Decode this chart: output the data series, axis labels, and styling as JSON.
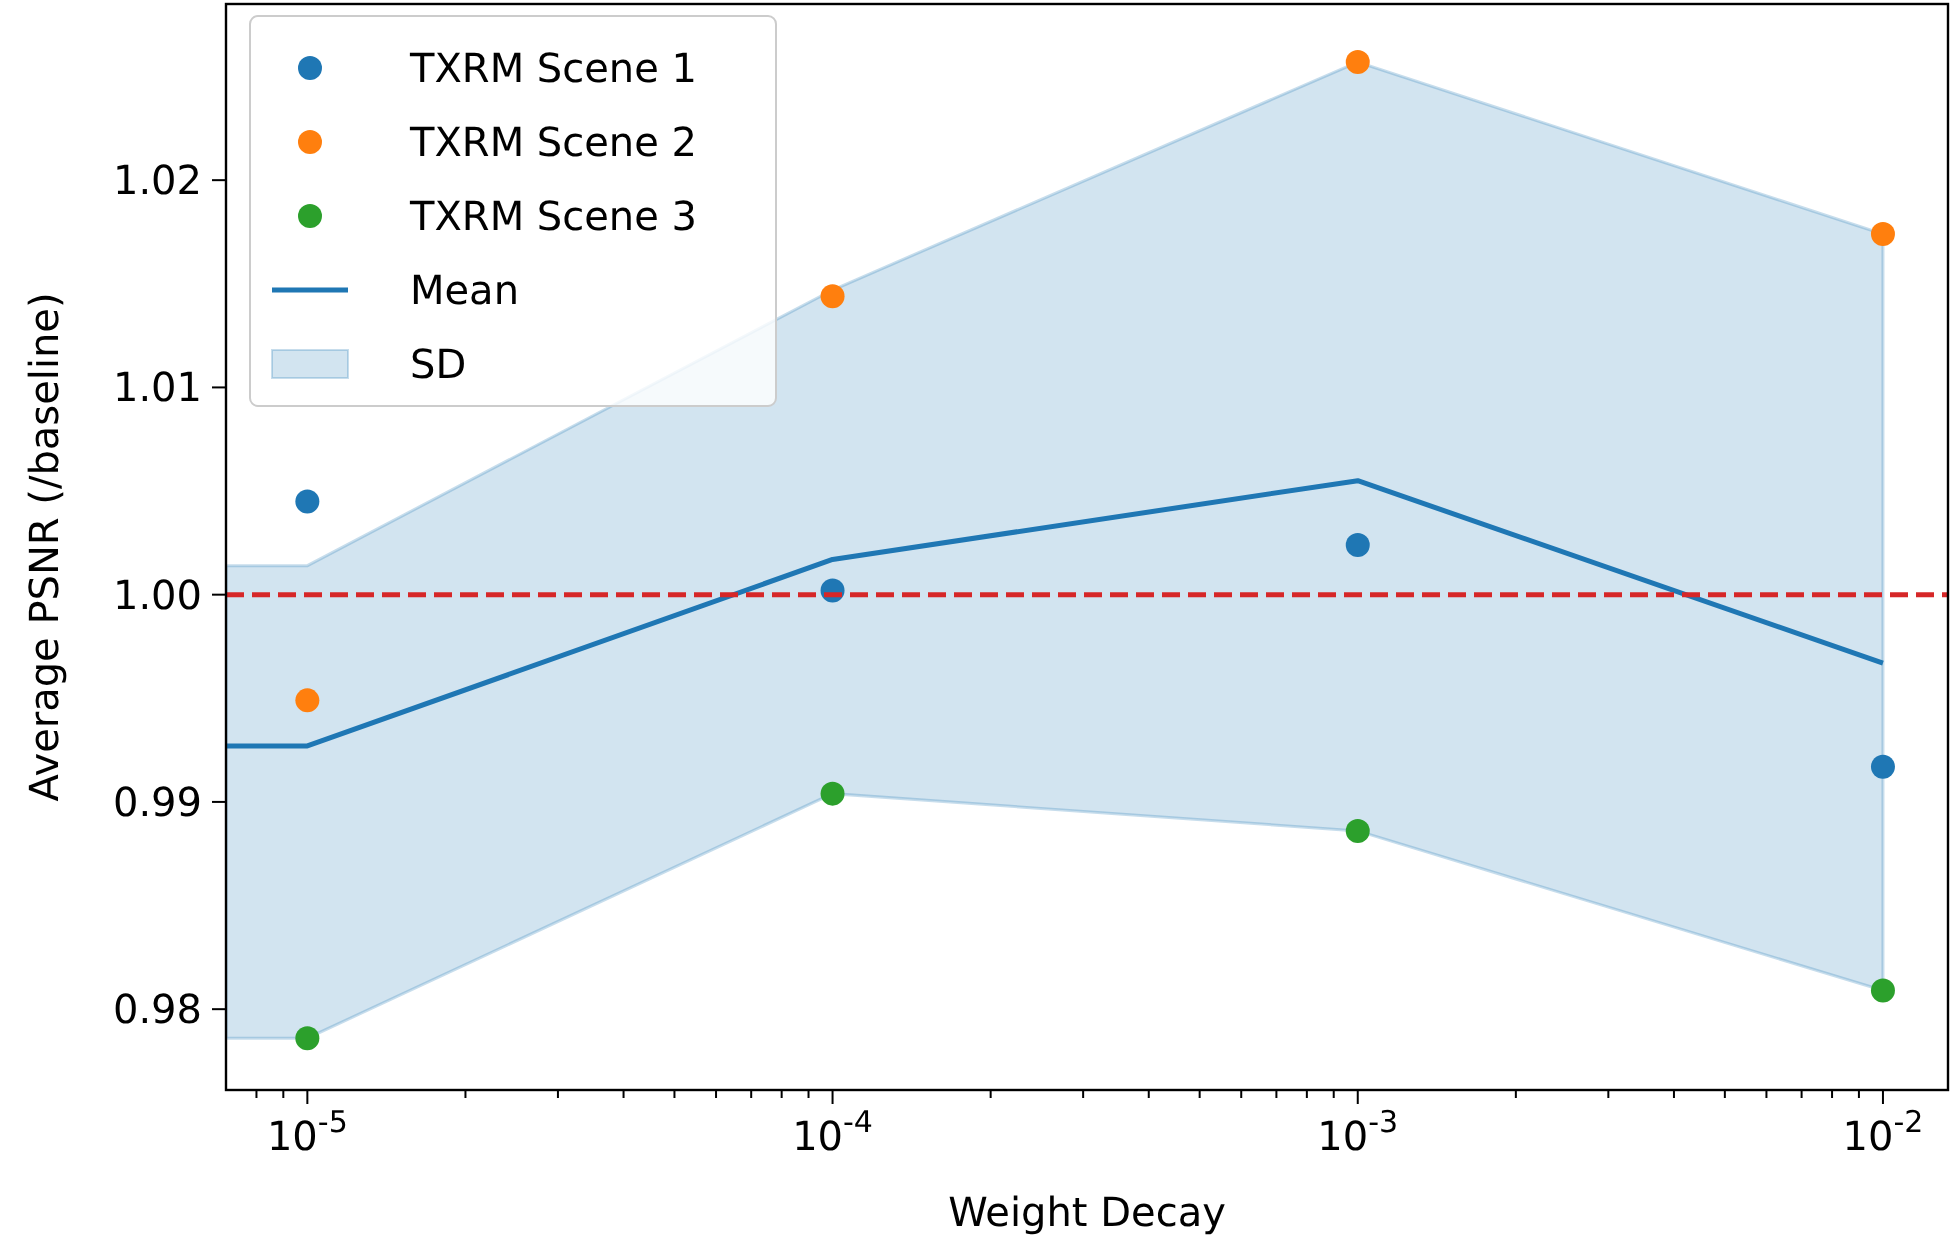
{
  "chart_data": {
    "type": "scatter",
    "xlabel": "Weight Decay",
    "ylabel": "Average PSNR (/baseline)",
    "log": "x",
    "xlim": [
      7e-06,
      0.0133
    ],
    "ylim": [
      0.9761,
      1.0285
    ],
    "xticks": [
      {
        "value": 8e-06,
        "label": null
      },
      {
        "value": 9e-06,
        "label": null
      },
      {
        "value": 1e-05,
        "label": "10$^{-5}$"
      },
      {
        "value": 2e-05,
        "label": null
      },
      {
        "value": 3e-05,
        "label": null
      },
      {
        "value": 4e-05,
        "label": null
      },
      {
        "value": 5e-05,
        "label": null
      },
      {
        "value": 6e-05,
        "label": null
      },
      {
        "value": 7e-05,
        "label": null
      },
      {
        "value": 8e-05,
        "label": null
      },
      {
        "value": 9e-05,
        "label": null
      },
      {
        "value": 0.0001,
        "label": "10$^{-4}$"
      },
      {
        "value": 0.0002,
        "label": null
      },
      {
        "value": 0.0003,
        "label": null
      },
      {
        "value": 0.0004,
        "label": null
      },
      {
        "value": 0.0005,
        "label": null
      },
      {
        "value": 0.0006,
        "label": null
      },
      {
        "value": 0.0007,
        "label": null
      },
      {
        "value": 0.0008,
        "label": null
      },
      {
        "value": 0.0009,
        "label": null
      },
      {
        "value": 0.001,
        "label": "10$^{-3}$"
      },
      {
        "value": 0.002,
        "label": null
      },
      {
        "value": 0.003,
        "label": null
      },
      {
        "value": 0.004,
        "label": null
      },
      {
        "value": 0.005,
        "label": null
      },
      {
        "value": 0.006,
        "label": null
      },
      {
        "value": 0.007,
        "label": null
      },
      {
        "value": 0.008,
        "label": null
      },
      {
        "value": 0.009,
        "label": null
      },
      {
        "value": 0.01,
        "label": "10$^{-2}$"
      }
    ],
    "yticks": [
      {
        "value": 0.98,
        "label": "0.98"
      },
      {
        "value": 0.99,
        "label": "0.99"
      },
      {
        "value": 1.0,
        "label": "1.00"
      },
      {
        "value": 1.01,
        "label": "1.01"
      },
      {
        "value": 1.02,
        "label": "1.02"
      }
    ],
    "grid": false,
    "legend": "top left",
    "marker": "circle",
    "series": [
      {
        "name": "TXRM Scene 1",
        "color": "#1f77b4",
        "x": [
          1e-05,
          0.0001,
          0.001,
          0.01
        ],
        "values": [
          1.0045,
          1.0002,
          1.0024,
          0.9917
        ]
      },
      {
        "name": "TXRM Scene 2",
        "color": "#ff7f0e",
        "x": [
          1e-05,
          0.0001,
          0.001,
          0.01
        ],
        "values": [
          0.9949,
          1.0144,
          1.0257,
          1.0174
        ]
      },
      {
        "name": "TXRM Scene 3",
        "color": "#2ca02c",
        "x": [
          1e-05,
          0.0001,
          0.001,
          0.01
        ],
        "values": [
          0.9786,
          0.9904,
          0.9886,
          0.9809
        ]
      },
      {
        "name": "Mean",
        "type": "line",
        "marker": "none",
        "color": "#1f77b4",
        "line_style": "solid",
        "x": [
          7e-06,
          1e-05,
          0.0001,
          0.001,
          0.01
        ],
        "values": [
          0.9927,
          0.9927,
          1.0017,
          1.0055,
          0.9967
        ],
        "lower": [
          0.9786,
          0.9786,
          0.9904,
          0.9886,
          0.9809
        ],
        "upper": [
          1.0014,
          1.0014,
          1.0147,
          1.0257,
          1.0174
        ]
      }
    ],
    "annotations": [
      "SD"
    ],
    "ref_lines": [
      {
        "axis": "y",
        "value": 1.0,
        "color": "#d62728",
        "line_style": "dashed"
      }
    ]
  }
}
